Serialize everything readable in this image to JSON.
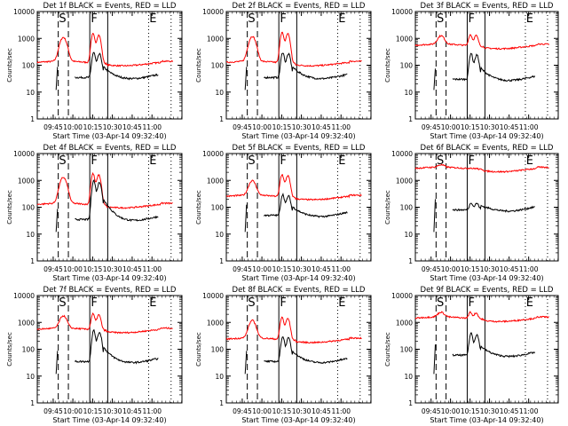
{
  "chart_data": [
    {
      "type": "line",
      "title": "Det 1f BLACK = Events, RED = LLD",
      "xlabel": "Start Time (03-Apr-14 09:32:40)",
      "ylabel": "Counts/sec",
      "yscale": "log",
      "ylim": [
        1,
        10000
      ],
      "xlim": [
        "09:32:40",
        "11:22:00"
      ],
      "y_ticks": [
        "1",
        "10",
        "100",
        "1000",
        "10000"
      ],
      "x_ticks": [
        "09:45",
        "10:00",
        "10:15",
        "10:30",
        "10:45",
        "11:00"
      ],
      "markers": [
        "S",
        "F",
        "E"
      ],
      "series": [
        {
          "color": "#000000",
          "base": 35,
          "peak1": 0,
          "peak2": 300
        },
        {
          "color": "#ff0000",
          "base": 150,
          "peak1": 1100,
          "peak2": 1500
        }
      ]
    },
    {
      "type": "line",
      "title": "Det 2f BLACK = Events, RED = LLD",
      "xlabel": "Start Time (03-Apr-14 09:32:40)",
      "ylabel": "Counts/sec",
      "yscale": "log",
      "ylim": [
        1,
        10000
      ],
      "xlim": [
        "09:32:40",
        "11:22:00"
      ],
      "y_ticks": [
        "1",
        "10",
        "100",
        "1000",
        "10000"
      ],
      "x_ticks": [
        "09:45",
        "10:00",
        "10:15",
        "10:30",
        "10:45",
        "11:00"
      ],
      "markers": [
        "S",
        "F",
        "E"
      ],
      "series": [
        {
          "color": "#000000",
          "base": 35,
          "peak1": 0,
          "peak2": 300
        },
        {
          "color": "#ff0000",
          "base": 150,
          "peak1": 1200,
          "peak2": 1700
        }
      ]
    },
    {
      "type": "line",
      "title": "Det 3f BLACK = Events, RED = LLD",
      "xlabel": "Start Time (03-Apr-14 09:32:40)",
      "ylabel": "Counts/sec",
      "yscale": "log",
      "ylim": [
        1,
        10000
      ],
      "xlim": [
        "09:32:40",
        "11:22:00"
      ],
      "y_ticks": [
        "1",
        "10",
        "100",
        "1000",
        "10000"
      ],
      "x_ticks": [
        "09:45",
        "10:00",
        "10:15",
        "10:30",
        "10:45",
        "11:00"
      ],
      "markers": [
        "S",
        "F",
        "E"
      ],
      "series": [
        {
          "color": "#000000",
          "base": 30,
          "peak1": 0,
          "peak2": 280
        },
        {
          "color": "#ff0000",
          "base": 650,
          "peak1": 1300,
          "peak2": 1500
        }
      ]
    },
    {
      "type": "line",
      "title": "Det 4f BLACK = Events, RED = LLD",
      "xlabel": "Start Time (03-Apr-14 09:32:40)",
      "ylabel": "Counts/sec",
      "yscale": "log",
      "ylim": [
        1,
        10000
      ],
      "xlim": [
        "09:32:40",
        "11:22:00"
      ],
      "y_ticks": [
        "1",
        "10",
        "100",
        "1000",
        "10000"
      ],
      "x_ticks": [
        "09:45",
        "10:00",
        "10:15",
        "10:30",
        "10:45",
        "11:00"
      ],
      "markers": [
        "S",
        "F",
        "E"
      ],
      "series": [
        {
          "color": "#000000",
          "base": 35,
          "peak1": 0,
          "peak2": 1000
        },
        {
          "color": "#ff0000",
          "base": 150,
          "peak1": 1300,
          "peak2": 1800
        }
      ]
    },
    {
      "type": "line",
      "title": "Det 5f BLACK = Events, RED = LLD",
      "xlabel": "Start Time (03-Apr-14 09:32:40)",
      "ylabel": "Counts/sec",
      "yscale": "log",
      "ylim": [
        1,
        10000
      ],
      "xlim": [
        "09:32:40",
        "11:22:00"
      ],
      "y_ticks": [
        "1",
        "10",
        "100",
        "1000",
        "10000"
      ],
      "x_ticks": [
        "09:45",
        "10:00",
        "10:15",
        "10:30",
        "10:45",
        "11:00"
      ],
      "markers": [
        "S",
        "F",
        "E"
      ],
      "series": [
        {
          "color": "#000000",
          "base": 50,
          "peak1": 0,
          "peak2": 300
        },
        {
          "color": "#ff0000",
          "base": 300,
          "peak1": 1000,
          "peak2": 1700
        }
      ]
    },
    {
      "type": "line",
      "title": "Det 6f BLACK = Events, RED = LLD",
      "xlabel": "Start Time (03-Apr-14 09:32:40)",
      "ylabel": "Counts/sec",
      "yscale": "log",
      "ylim": [
        1,
        10000
      ],
      "xlim": [
        "09:32:40",
        "11:22:00"
      ],
      "y_ticks": [
        "1",
        "10",
        "100",
        "1000",
        "10000"
      ],
      "x_ticks": [
        "09:45",
        "10:00",
        "10:15",
        "10:30",
        "10:45",
        "11:00"
      ],
      "markers": [
        "S",
        "F",
        "E"
      ],
      "series": [
        {
          "color": "#000000",
          "base": 80,
          "peak1": 0,
          "peak2": 150
        },
        {
          "color": "#ff0000",
          "base": 3300,
          "peak1": 4000,
          "peak2": 3500
        }
      ]
    },
    {
      "type": "line",
      "title": "Det 7f BLACK = Events, RED = LLD",
      "xlabel": "Start Time (03-Apr-14 09:32:40)",
      "ylabel": "Counts/sec",
      "yscale": "log",
      "ylim": [
        1,
        10000
      ],
      "xlim": [
        "09:32:40",
        "11:22:00"
      ],
      "y_ticks": [
        "1",
        "10",
        "100",
        "1000",
        "10000"
      ],
      "x_ticks": [
        "09:45",
        "10:00",
        "10:15",
        "10:30",
        "10:45",
        "11:00"
      ],
      "markers": [
        "S",
        "F",
        "E"
      ],
      "series": [
        {
          "color": "#000000",
          "base": 35,
          "peak1": 0,
          "peak2": 500
        },
        {
          "color": "#ff0000",
          "base": 650,
          "peak1": 1800,
          "peak2": 2200
        }
      ]
    },
    {
      "type": "line",
      "title": "Det 8f BLACK = Events, RED = LLD",
      "xlabel": "Start Time (03-Apr-14 09:32:40)",
      "ylabel": "Counts/sec",
      "yscale": "log",
      "ylim": [
        1,
        10000
      ],
      "xlim": [
        "09:32:40",
        "11:22:00"
      ],
      "y_ticks": [
        "1",
        "10",
        "100",
        "1000",
        "10000"
      ],
      "x_ticks": [
        "09:45",
        "10:00",
        "10:15",
        "10:30",
        "10:45",
        "11:00"
      ],
      "markers": [
        "S",
        "F",
        "E"
      ],
      "series": [
        {
          "color": "#000000",
          "base": 35,
          "peak1": 0,
          "peak2": 300
        },
        {
          "color": "#ff0000",
          "base": 280,
          "peak1": 1200,
          "peak2": 1600
        }
      ]
    },
    {
      "type": "line",
      "title": "Det 9f BLACK = Events, RED = LLD",
      "xlabel": "Start Time (03-Apr-14 09:32:40)",
      "ylabel": "Counts/sec",
      "yscale": "log",
      "ylim": [
        1,
        10000
      ],
      "xlim": [
        "09:32:40",
        "11:22:00"
      ],
      "y_ticks": [
        "1",
        "10",
        "100",
        "1000",
        "10000"
      ],
      "x_ticks": [
        "09:45",
        "10:00",
        "10:15",
        "10:30",
        "10:45",
        "11:00"
      ],
      "markers": [
        "S",
        "F",
        "E"
      ],
      "series": [
        {
          "color": "#000000",
          "base": 60,
          "peak1": 0,
          "peak2": 400
        },
        {
          "color": "#ff0000",
          "base": 1700,
          "peak1": 2500,
          "peak2": 2700
        }
      ]
    }
  ]
}
